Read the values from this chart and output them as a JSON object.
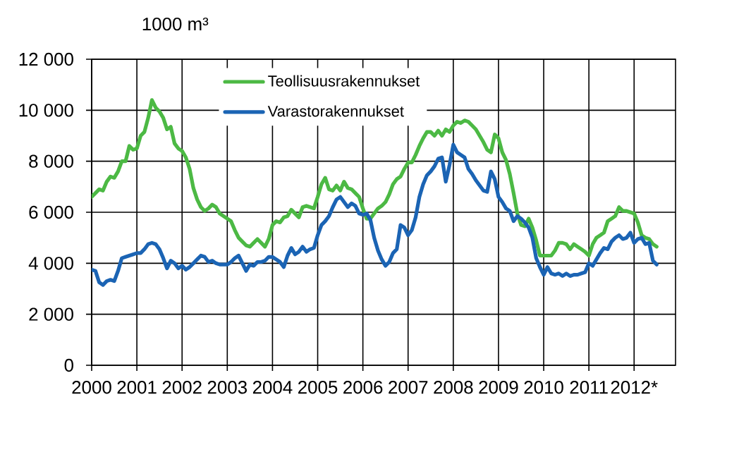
{
  "chart_data": {
    "type": "line",
    "ylabel": "1000 m³",
    "x": [
      "2000-01",
      "2000-02",
      "2000-03",
      "2000-04",
      "2000-05",
      "2000-06",
      "2000-07",
      "2000-08",
      "2000-09",
      "2000-10",
      "2000-11",
      "2000-12",
      "2001-01",
      "2001-02",
      "2001-03",
      "2001-04",
      "2001-05",
      "2001-06",
      "2001-07",
      "2001-08",
      "2001-09",
      "2001-10",
      "2001-11",
      "2001-12",
      "2002-01",
      "2002-02",
      "2002-03",
      "2002-04",
      "2002-05",
      "2002-06",
      "2002-07",
      "2002-08",
      "2002-09",
      "2002-10",
      "2002-11",
      "2002-12",
      "2003-01",
      "2003-02",
      "2003-03",
      "2003-04",
      "2003-05",
      "2003-06",
      "2003-07",
      "2003-08",
      "2003-09",
      "2003-10",
      "2003-11",
      "2003-12",
      "2004-01",
      "2004-02",
      "2004-03",
      "2004-04",
      "2004-05",
      "2004-06",
      "2004-07",
      "2004-08",
      "2004-09",
      "2004-10",
      "2004-11",
      "2004-12",
      "2005-01",
      "2005-02",
      "2005-03",
      "2005-04",
      "2005-05",
      "2005-06",
      "2005-07",
      "2005-08",
      "2005-09",
      "2005-10",
      "2005-11",
      "2005-12",
      "2006-01",
      "2006-02",
      "2006-03",
      "2006-04",
      "2006-05",
      "2006-06",
      "2006-07",
      "2006-08",
      "2006-09",
      "2006-10",
      "2006-11",
      "2006-12",
      "2007-01",
      "2007-02",
      "2007-03",
      "2007-04",
      "2007-05",
      "2007-06",
      "2007-07",
      "2007-08",
      "2007-09",
      "2007-10",
      "2007-11",
      "2007-12",
      "2008-01",
      "2008-02",
      "2008-03",
      "2008-04",
      "2008-05",
      "2008-06",
      "2008-07",
      "2008-08",
      "2008-09",
      "2008-10",
      "2008-11",
      "2008-12",
      "2009-01",
      "2009-02",
      "2009-03",
      "2009-04",
      "2009-05",
      "2009-06",
      "2009-07",
      "2009-08",
      "2009-09",
      "2009-10",
      "2009-11",
      "2009-12",
      "2010-01",
      "2010-02",
      "2010-03",
      "2010-04",
      "2010-05",
      "2010-06",
      "2010-07",
      "2010-08",
      "2010-09",
      "2010-10",
      "2010-11",
      "2010-12",
      "2011-01",
      "2011-02",
      "2011-03",
      "2011-04",
      "2011-05",
      "2011-06",
      "2011-07",
      "2011-08",
      "2011-09",
      "2011-10",
      "2011-11",
      "2011-12",
      "2012-01",
      "2012-02",
      "2012-03",
      "2012-04",
      "2012-05",
      "2012-06",
      "2012-07"
    ],
    "series": [
      {
        "name": "Teollisuusrakennukset",
        "color": "#4cb944",
        "values": [
          6600,
          6750,
          6900,
          6850,
          7200,
          7400,
          7350,
          7600,
          8000,
          8000,
          8600,
          8450,
          8500,
          9000,
          9150,
          9700,
          10400,
          10100,
          9950,
          9700,
          9250,
          9350,
          8700,
          8500,
          8400,
          8150,
          7700,
          6950,
          6500,
          6200,
          6050,
          6150,
          6300,
          6200,
          5950,
          5850,
          5750,
          5650,
          5300,
          5000,
          4850,
          4700,
          4650,
          4800,
          4950,
          4800,
          4650,
          4950,
          5500,
          5650,
          5600,
          5800,
          5850,
          6100,
          5950,
          5800,
          6200,
          6250,
          6200,
          6150,
          6600,
          7100,
          7350,
          6900,
          6850,
          7050,
          6850,
          7200,
          6950,
          6900,
          6750,
          6600,
          6150,
          5750,
          5750,
          5950,
          6150,
          6250,
          6400,
          6700,
          7100,
          7300,
          7400,
          7700,
          7950,
          7950,
          8250,
          8600,
          8900,
          9150,
          9150,
          9000,
          9200,
          9000,
          9250,
          9150,
          9400,
          9550,
          9500,
          9600,
          9550,
          9400,
          9250,
          9000,
          8750,
          8450,
          8350,
          9050,
          8900,
          8350,
          8050,
          7500,
          6750,
          5950,
          5500,
          5450,
          5750,
          5400,
          4900,
          4300,
          4300,
          4300,
          4300,
          4500,
          4800,
          4800,
          4750,
          4550,
          4750,
          4650,
          4550,
          4450,
          4300,
          4750,
          5000,
          5100,
          5200,
          5650,
          5750,
          5850,
          6200,
          6050,
          6050,
          6000,
          5950,
          5600,
          5100,
          5000,
          4950,
          4750,
          4650
        ]
      },
      {
        "name": "Varastorakennukset",
        "color": "#1b64b4",
        "values": [
          3750,
          3700,
          3250,
          3150,
          3300,
          3350,
          3300,
          3700,
          4200,
          4250,
          4300,
          4350,
          4400,
          4400,
          4550,
          4750,
          4800,
          4750,
          4550,
          4200,
          3800,
          4100,
          4000,
          3800,
          3900,
          3750,
          3850,
          4000,
          4150,
          4300,
          4250,
          4050,
          4100,
          4000,
          3950,
          3950,
          3950,
          4050,
          4200,
          4300,
          4000,
          3700,
          3950,
          3900,
          4050,
          4050,
          4100,
          4250,
          4250,
          4150,
          4050,
          3850,
          4300,
          4600,
          4350,
          4450,
          4650,
          4450,
          4550,
          4600,
          5100,
          5500,
          5650,
          5850,
          6200,
          6500,
          6600,
          6400,
          6200,
          6350,
          6250,
          5950,
          5900,
          5950,
          5700,
          5000,
          4500,
          4150,
          3900,
          4050,
          4400,
          4550,
          5500,
          5400,
          5100,
          5300,
          5800,
          6600,
          7100,
          7450,
          7600,
          7800,
          8100,
          8150,
          7200,
          7850,
          8650,
          8350,
          8250,
          8150,
          7700,
          7500,
          7250,
          7050,
          6850,
          6800,
          7600,
          7300,
          6600,
          6400,
          6150,
          6050,
          5650,
          5850,
          5750,
          5600,
          5400,
          5000,
          4200,
          3850,
          3550,
          3850,
          3600,
          3550,
          3600,
          3500,
          3600,
          3500,
          3550,
          3550,
          3600,
          3650,
          4000,
          3900,
          4150,
          4400,
          4600,
          4550,
          4850,
          5000,
          5100,
          4950,
          5000,
          5200,
          4800,
          4950,
          5000,
          4750,
          4800,
          4100,
          3950
        ]
      }
    ],
    "xlim": [
      "2000-01",
      "2012-12"
    ],
    "xticks": [
      "2000",
      "2001",
      "2002",
      "2003",
      "2004",
      "2005",
      "2006",
      "2007",
      "2008",
      "2009",
      "2010",
      "2011",
      {
        "value": "2012",
        "label": "2012*"
      }
    ],
    "ylim": [
      0,
      12000
    ],
    "yticks": [
      0,
      {
        "value": 2000,
        "label": "2 000"
      },
      {
        "value": 4000,
        "label": "4 000"
      },
      {
        "value": 6000,
        "label": "6 000"
      },
      {
        "value": 8000,
        "label": "8 000"
      },
      {
        "value": 10000,
        "label": "10 000"
      },
      {
        "value": 12000,
        "label": "12 000"
      }
    ],
    "grid": true,
    "legend": "top"
  }
}
